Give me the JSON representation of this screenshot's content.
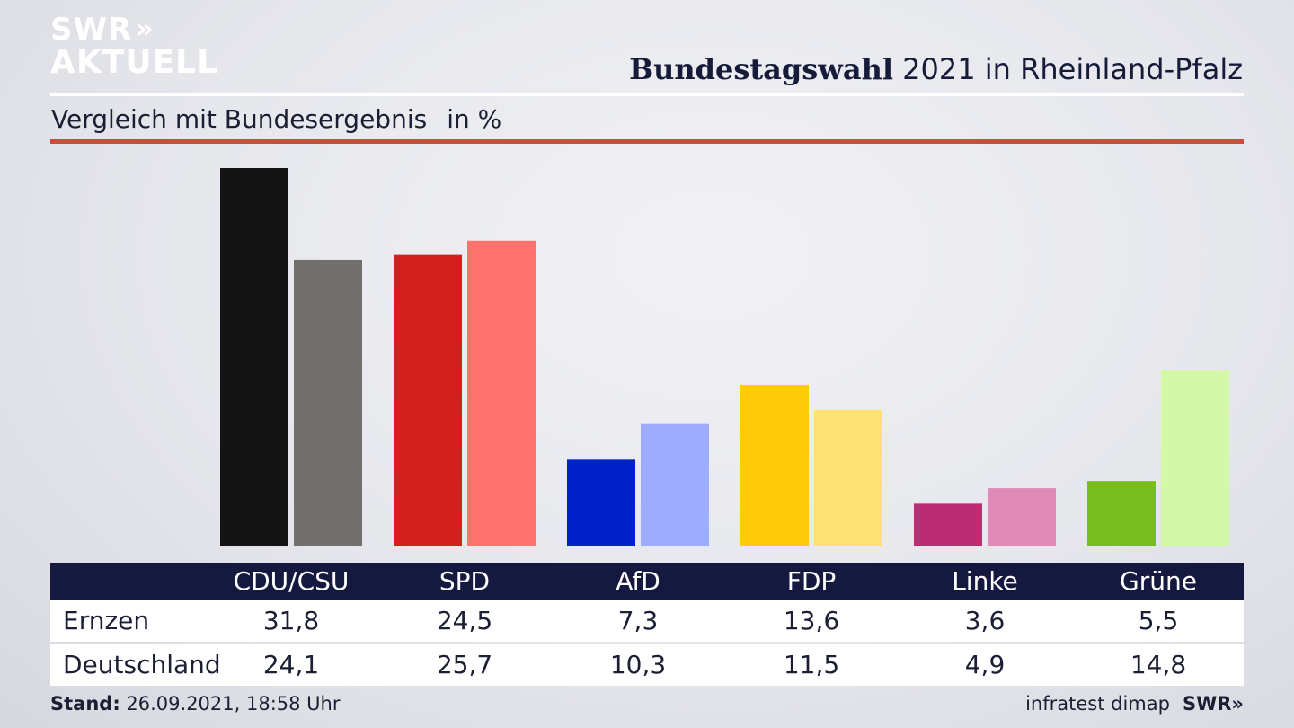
{
  "brand": {
    "line1": "SWR",
    "chevrons": "»",
    "line2": "AKTUELL"
  },
  "header": {
    "title_bold": "Bundestagswahl",
    "title_rest": " 2021 in Rheinland-Pfalz"
  },
  "subheader": {
    "text": "Vergleich mit Bundesergebnis",
    "unit": "in %"
  },
  "chart_data": {
    "type": "bar",
    "categories": [
      "CDU/CSU",
      "SPD",
      "AfD",
      "FDP",
      "Linke",
      "Grüne"
    ],
    "series": [
      {
        "name": "Ernzen",
        "values": [
          31.8,
          24.5,
          7.3,
          13.6,
          3.6,
          5.5
        ],
        "colors": [
          "#141414",
          "#d41f1f",
          "#0021c8",
          "#ffca0a",
          "#bb2d72",
          "#78bd1e"
        ]
      },
      {
        "name": "Deutschland",
        "values": [
          24.1,
          25.7,
          10.3,
          11.5,
          4.9,
          14.8
        ],
        "colors": [
          "#72706e",
          "#ff726d",
          "#9eacff",
          "#ffe273",
          "#e08ab8",
          "#d4f7a8"
        ]
      }
    ],
    "ylim": [
      0,
      32
    ],
    "grid": false,
    "title": "Bundestagswahl 2021 in Rheinland-Pfalz",
    "xlabel": "",
    "ylabel": ""
  },
  "table": {
    "header": [
      "CDU/CSU",
      "SPD",
      "AfD",
      "FDP",
      "Linke",
      "Grüne"
    ],
    "rows": [
      {
        "label": "Ernzen",
        "values": [
          "31,8",
          "24,5",
          "7,3",
          "13,6",
          "3,6",
          "5,5"
        ]
      },
      {
        "label": "Deutschland",
        "values": [
          "24,1",
          "25,7",
          "10,3",
          "11,5",
          "4,9",
          "14,8"
        ]
      }
    ]
  },
  "footer": {
    "stand_label": "Stand:",
    "stand_value": " 26.09.2021, 18:58 Uhr",
    "source": "infratest dimap",
    "brand": "SWR»"
  },
  "colors": {
    "header_bg": "#16193f",
    "accent_red": "#d4493c"
  }
}
